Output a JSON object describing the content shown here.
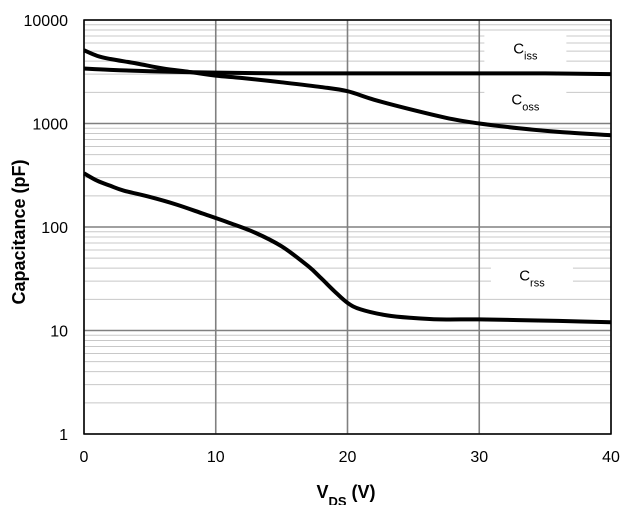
{
  "chart_data": {
    "type": "line",
    "title": "",
    "xlabel": {
      "main": "V",
      "sub": "DS",
      "suffix": " (V)"
    },
    "ylabel": "Capacitance (pF)",
    "xlim": [
      0,
      40
    ],
    "ylim": [
      1,
      10000
    ],
    "yscale": "log",
    "grid": true,
    "x_ticks": [
      0,
      10,
      20,
      30,
      40
    ],
    "y_ticks": [
      1,
      10,
      100,
      1000,
      10000
    ],
    "x_tick_labels": [
      "0",
      "10",
      "20",
      "30",
      "40"
    ],
    "y_tick_labels": [
      "1",
      "10",
      "100",
      "1000",
      "10000"
    ],
    "series": [
      {
        "name": "Ciss",
        "label_main": "C",
        "label_sub": "iss",
        "x": [
          0,
          2,
          5,
          10,
          15,
          20,
          25,
          30,
          35,
          40
        ],
        "y": [
          3400,
          3300,
          3200,
          3100,
          3050,
          3050,
          3050,
          3050,
          3050,
          3000
        ]
      },
      {
        "name": "Coss",
        "label_main": "C",
        "label_sub": "oss",
        "x": [
          0,
          1,
          2,
          4,
          6,
          8,
          10,
          12,
          15,
          18,
          20,
          22,
          25,
          28,
          30,
          33,
          36,
          40
        ],
        "y": [
          5100,
          4500,
          4200,
          3800,
          3400,
          3150,
          2900,
          2750,
          2500,
          2250,
          2050,
          1700,
          1350,
          1100,
          1000,
          900,
          830,
          770
        ]
      },
      {
        "name": "Crss",
        "label_main": "C",
        "label_sub": "rss",
        "x": [
          0,
          1,
          2,
          3,
          5,
          7,
          9,
          11,
          13,
          15,
          17,
          18,
          19,
          20,
          21,
          23,
          25,
          27,
          30,
          33,
          36,
          40
        ],
        "y": [
          330,
          280,
          250,
          225,
          195,
          165,
          135,
          110,
          88,
          65,
          42,
          32,
          24,
          18.5,
          16,
          14,
          13.2,
          12.8,
          12.8,
          12.6,
          12.4,
          12
        ]
      }
    ],
    "legend": [
      {
        "series": "Ciss",
        "main": "C",
        "sub": "iss",
        "at_x": 33.5,
        "at_y": 5300
      },
      {
        "series": "Coss",
        "main": "C",
        "sub": "oss",
        "at_x": 33.5,
        "at_y": 1700
      },
      {
        "series": "Crss",
        "main": "C",
        "sub": "rss",
        "at_x": 34.0,
        "at_y": 34
      }
    ]
  }
}
